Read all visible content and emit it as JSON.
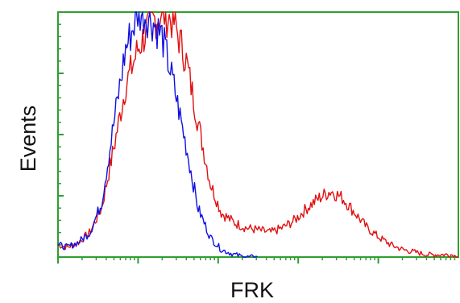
{
  "chart_data": {
    "type": "line",
    "title": "",
    "xlabel": "FRK",
    "ylabel": "Events",
    "xscale": "log",
    "xlim": [
      0.1,
      10000
    ],
    "ylim": [
      0,
      100
    ],
    "grid": false,
    "legend": "none",
    "series": [
      {
        "color": "#e01010",
        "x": [
          0.1,
          0.13,
          0.18,
          0.25,
          0.35,
          0.5,
          0.7,
          1,
          1.4,
          2,
          2.8,
          4,
          5.6,
          8,
          11,
          16,
          22,
          32,
          45,
          64,
          90,
          128,
          180,
          256,
          360,
          512,
          720,
          1024,
          1440,
          2048,
          2900,
          4096,
          5800,
          8192,
          10000
        ],
        "y": [
          5,
          4,
          6,
          10,
          20,
          45,
          70,
          85,
          95,
          100,
          96,
          80,
          55,
          30,
          18,
          14,
          12,
          11,
          10,
          12,
          15,
          20,
          24,
          27,
          24,
          18,
          12,
          8,
          5,
          3,
          2,
          1,
          1,
          1,
          0
        ]
      },
      {
        "color": "#1010e0",
        "x": [
          0.1,
          0.13,
          0.18,
          0.25,
          0.35,
          0.5,
          0.7,
          1,
          1.4,
          2,
          2.8,
          4,
          5.6,
          8,
          11,
          16,
          22,
          32
        ],
        "y": [
          5,
          4,
          6,
          10,
          22,
          55,
          85,
          100,
          98,
          90,
          70,
          45,
          20,
          8,
          3,
          1,
          0,
          0
        ]
      }
    ]
  },
  "colors": {
    "frame": "#2e9e2e"
  }
}
